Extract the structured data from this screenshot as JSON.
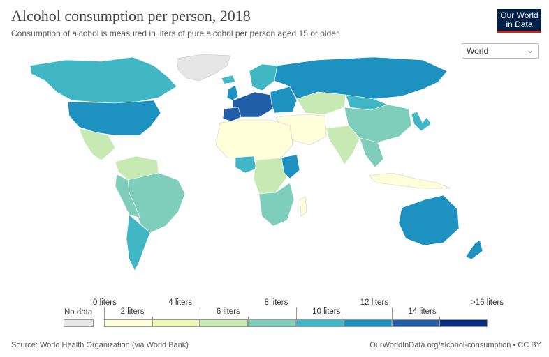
{
  "header": {
    "title": "Alcohol consumption per person, 2018",
    "subtitle": "Consumption of alcohol is measured in liters of pure alcohol per person aged 15 or older."
  },
  "logo": {
    "line1": "Our World",
    "line2": "in Data"
  },
  "region_select": {
    "value": "World",
    "chevron_icon": "chevron-down-icon"
  },
  "legend": {
    "no_data_label": "No data",
    "no_data_color": "#e6e6e6",
    "bins": [
      {
        "label": "0 liters",
        "color": "#ffffd9"
      },
      {
        "label": "2 liters",
        "color": "#ecf8b2"
      },
      {
        "label": "4 liters",
        "color": "#c7e9b4"
      },
      {
        "label": "6 liters",
        "color": "#7fcdbb"
      },
      {
        "label": "8 liters",
        "color": "#41b6c4"
      },
      {
        "label": "10 liters",
        "color": "#1d91c0"
      },
      {
        "label": "12 liters",
        "color": "#225ea8"
      },
      {
        "label": "14 liters",
        "color": "#0c2c84"
      }
    ],
    "end_label": ">16 liters"
  },
  "footer": {
    "source": "Source: World Health Organization (via World Bank)",
    "link": "OurWorldInData.org/alcohol-consumption • CC BY"
  }
}
